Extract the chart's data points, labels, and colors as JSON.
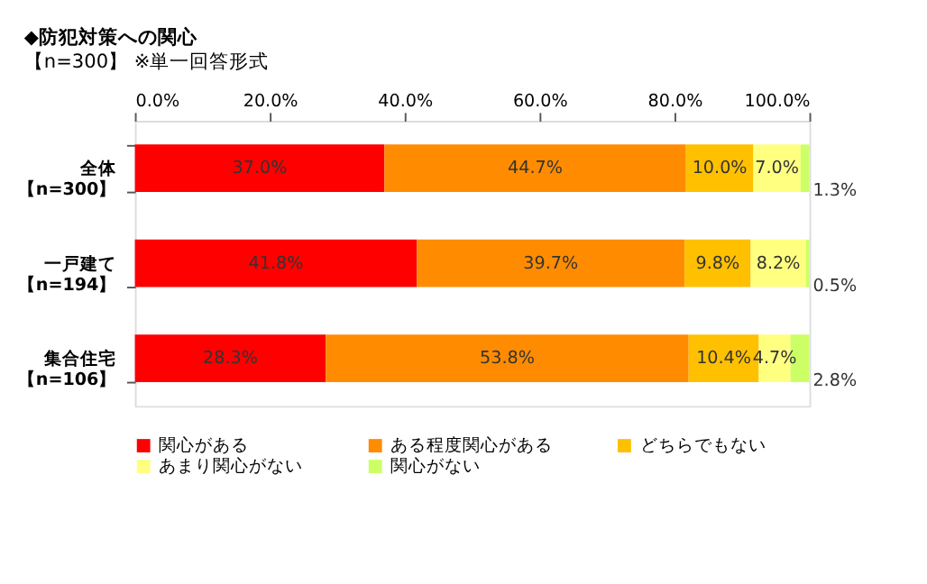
{
  "chart_data": {
    "type": "bar",
    "orientation": "horizontal",
    "stacked": true,
    "title": "◆防犯対策への関心",
    "subtitle": "【n=300】 ※単一回答形式",
    "categories": [
      "全体【n=300】",
      "一戸建て【n=194】",
      "集合住宅【n=106】"
    ],
    "series": [
      {
        "name": "関心がある",
        "color": "#ff0000",
        "values": [
          37.0,
          41.8,
          28.3
        ],
        "value_labels": [
          "37.0%",
          "41.8%",
          "28.3%"
        ]
      },
      {
        "name": "ある程度関心がある",
        "color": "#ff8c00",
        "values": [
          44.7,
          39.7,
          53.8
        ],
        "value_labels": [
          "44.7%",
          "39.7%",
          "53.8%"
        ]
      },
      {
        "name": "どちらでもない",
        "color": "#ffc000",
        "values": [
          10.0,
          9.8,
          10.4
        ],
        "value_labels": [
          "10.0%",
          "9.8%",
          "10.4%"
        ]
      },
      {
        "name": "あまり関心がない",
        "color": "#ffff80",
        "values": [
          7.0,
          8.2,
          4.7
        ],
        "value_labels": [
          "7.0%",
          "8.2%",
          "4.7%"
        ]
      },
      {
        "name": "関心がない",
        "color": "#ccff66",
        "values": [
          1.3,
          0.5,
          2.8
        ],
        "value_labels": [
          "1.3%",
          "0.5%",
          "2.8%"
        ]
      }
    ],
    "xlim": [
      0,
      100
    ],
    "xticks": [
      {
        "value": 0,
        "label": "0.0%"
      },
      {
        "value": 20,
        "label": "20.0%"
      },
      {
        "value": 40,
        "label": "40.0%"
      },
      {
        "value": 60,
        "label": "60.0%"
      },
      {
        "value": 80,
        "label": "80.0%"
      },
      {
        "value": 100,
        "label": "100.0%"
      }
    ],
    "grid": false,
    "legend": "bottom"
  }
}
